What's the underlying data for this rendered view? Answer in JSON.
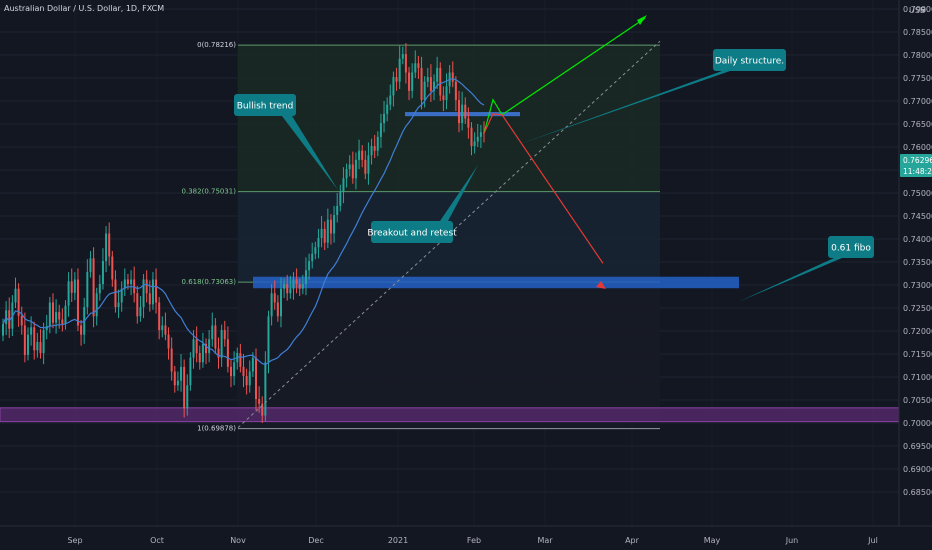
{
  "title": "Australian Dollar / U.S. Dollar, 1D, FXCM",
  "currency": "USD",
  "colors": {
    "background": "#131722",
    "bull": "#26a69a",
    "bear": "#ef5350",
    "ma": "#2962ff",
    "fib_line": "#5d9b6a",
    "zone_blue": "#2962ff",
    "zone_purple": "#9c27b0",
    "callout": "#0e7c86",
    "arrow_up": "#00e600",
    "arrow_down": "#e53935",
    "price_tag": "#26a69a"
  },
  "price_tag": {
    "price": "0.76296",
    "timer": "11:48:26"
  },
  "callouts": {
    "bullish": "Bullish trend",
    "daily": "Daily structure.",
    "breakout": "Breakout and retest",
    "fibo": "0.61 fibo"
  },
  "fib_labels": {
    "l0": "0(0.78216)",
    "l382": "0.382(0.75031)",
    "l618": "0.618(0.73063)",
    "l1": "1(0.69878)"
  },
  "chart_data": {
    "type": "candlestick",
    "symbol": "AUDUSD",
    "timeframe": "1D",
    "ylim": [
      0.6825,
      0.7925
    ],
    "y_ticks": [
      "0.79000",
      "0.78500",
      "0.78000",
      "0.77500",
      "0.77000",
      "0.76500",
      "0.76000",
      "0.75500",
      "0.75000",
      "0.74500",
      "0.74000",
      "0.73500",
      "0.73000",
      "0.72500",
      "0.72000",
      "0.71500",
      "0.71000",
      "0.70500",
      "0.70000",
      "0.69500",
      "0.69000",
      "0.68500"
    ],
    "x_ticks": [
      "Sep",
      "Oct",
      "Nov",
      "Dec",
      "2021",
      "Feb",
      "Mar",
      "Apr",
      "May",
      "Jun",
      "Jul"
    ],
    "fibonacci": [
      {
        "level": 0,
        "price": 0.78216
      },
      {
        "level": 0.382,
        "price": 0.75031
      },
      {
        "level": 0.618,
        "price": 0.73063
      },
      {
        "level": 1,
        "price": 0.69878
      }
    ],
    "zones": [
      {
        "name": "0.61 fibo zone",
        "low": 0.7293,
        "high": 0.7318
      },
      {
        "name": "support zone",
        "low": 0.7003,
        "high": 0.7033
      },
      {
        "name": "daily structure",
        "low": 0.7667,
        "high": 0.7676
      }
    ],
    "last_price": 0.76296,
    "closes": [
      0.7215,
      0.7245,
      0.7205,
      0.7262,
      0.7292,
      0.7233,
      0.7212,
      0.7148,
      0.7192,
      0.7208,
      0.7158,
      0.7176,
      0.7152,
      0.7202,
      0.7211,
      0.7262,
      0.7218,
      0.7241,
      0.7225,
      0.7215,
      0.7255,
      0.7308,
      0.7283,
      0.7312,
      0.7212,
      0.7192,
      0.7252,
      0.7328,
      0.7358,
      0.7232,
      0.7282,
      0.7302,
      0.7352,
      0.7412,
      0.7362,
      0.7312,
      0.7252,
      0.7262,
      0.7292,
      0.7312,
      0.7302,
      0.7312,
      0.7282,
      0.7232,
      0.7252,
      0.7312,
      0.7282,
      0.7258,
      0.7312,
      0.7262,
      0.7202,
      0.7212,
      0.7192,
      0.7162,
      0.7112,
      0.7082,
      0.7092,
      0.7122,
      0.7032,
      0.7082,
      0.7142,
      0.7182,
      0.7152,
      0.7132,
      0.7172,
      0.7152,
      0.7182,
      0.7212,
      0.7162,
      0.7142,
      0.7202,
      0.7182,
      0.7122,
      0.7102,
      0.7132,
      0.7152,
      0.7122,
      0.7102,
      0.7082,
      0.7112,
      0.7142,
      0.7052,
      0.7042,
      0.7016,
      0.7132,
      0.7232,
      0.7282,
      0.7262,
      0.7232,
      0.7292,
      0.7302,
      0.7282,
      0.7292,
      0.7312,
      0.7302,
      0.7292,
      0.7302,
      0.7332,
      0.7352,
      0.7368,
      0.7382,
      0.7402,
      0.7422,
      0.7392,
      0.7442,
      0.7412,
      0.7452,
      0.7472,
      0.7502,
      0.7532,
      0.7552,
      0.7562,
      0.7532,
      0.7572,
      0.7592,
      0.7572,
      0.7542,
      0.7582,
      0.7602,
      0.7592,
      0.7622,
      0.7652,
      0.7672,
      0.7692,
      0.7712,
      0.7752,
      0.7742,
      0.7792,
      0.7802,
      0.7762,
      0.7722,
      0.7762,
      0.7782,
      0.7772,
      0.7702,
      0.7742,
      0.7752,
      0.7722,
      0.7742,
      0.7772,
      0.7712,
      0.7702,
      0.7732,
      0.7762,
      0.7742,
      0.7702,
      0.7652,
      0.7692,
      0.7662,
      0.7642,
      0.7602,
      0.7612,
      0.7622,
      0.7632,
      0.763
    ]
  }
}
